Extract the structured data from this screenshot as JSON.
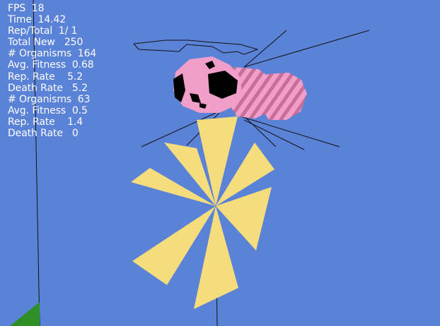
{
  "hud": {
    "fps": "FPS  18",
    "time": "Time  14.42",
    "rep_total": "Rep/Total  1/ 1",
    "total_new": "Total New   250",
    "group1": {
      "organisms": "# Organisms  164",
      "avg_fitness": "Avg. Fitness  0.68",
      "rep_rate": "Rep. Rate    5.2",
      "death_rate": "Death Rate   5.2"
    },
    "group2": {
      "organisms": "# Organisms  63",
      "avg_fitness": "Avg. Fitness  0.5",
      "rep_rate": "Rep. Rate    1.4",
      "death_rate": "Death Rate   0"
    }
  },
  "scene": {
    "background_color": "#5a82d7",
    "organism_body_color": "#f19ec8",
    "organism_stripe_color": "#c86f99",
    "eye_color": "#000000",
    "flower_color": "#f5dc7d",
    "line_color": "#111111",
    "ground_color": "#2f8f25"
  }
}
